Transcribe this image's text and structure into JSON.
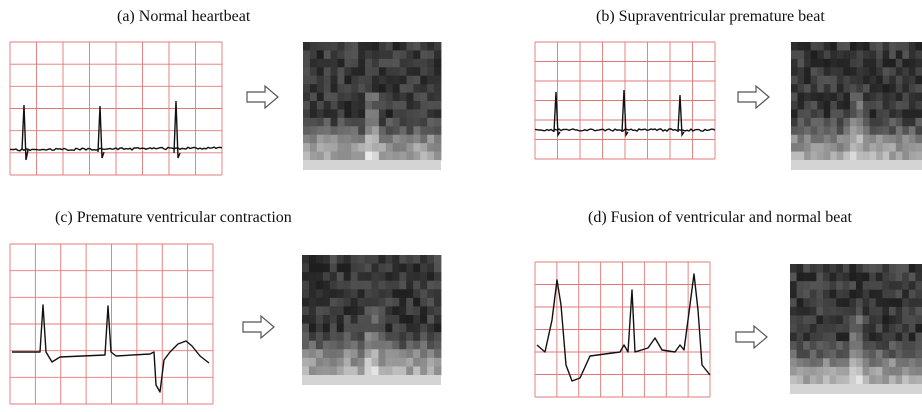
{
  "panels": [
    {
      "id": "a",
      "title": "(a) Normal heartbeat",
      "arrow_icon": "right-arrow-icon",
      "spectrogram": "heartbeat-spectrogram-image"
    },
    {
      "id": "b",
      "title": "(b) Supraventricular premature beat",
      "arrow_icon": "right-arrow-icon",
      "spectrogram": "heartbeat-spectrogram-image"
    },
    {
      "id": "c",
      "title": "(c) Premature ventricular contraction",
      "arrow_icon": "right-arrow-icon",
      "spectrogram": "heartbeat-spectrogram-image"
    },
    {
      "id": "d",
      "title": "(d) Fusion of ventricular and normal beat",
      "arrow_icon": "right-arrow-icon",
      "spectrogram": "heartbeat-spectrogram-image"
    }
  ],
  "colors": {
    "ecg_grid": "#e07878",
    "ecg_trace": "#111111",
    "arrow_stroke": "#555555"
  }
}
